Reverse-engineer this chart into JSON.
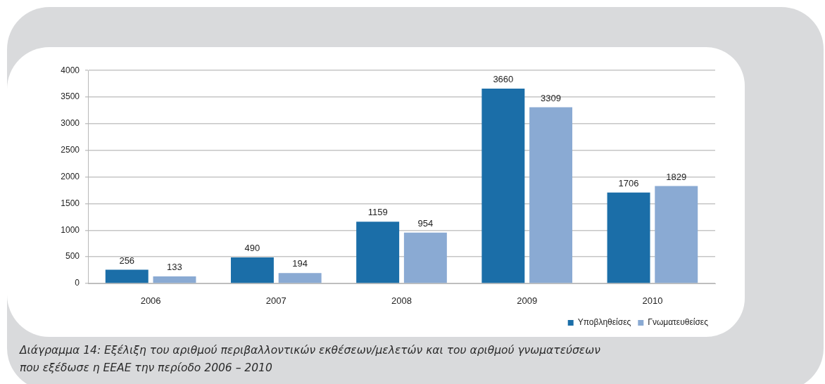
{
  "chart_data": {
    "type": "bar",
    "categories": [
      "2006",
      "2007",
      "2008",
      "2009",
      "2010"
    ],
    "series": [
      {
        "name": "Υποβληθείσες",
        "color": "#1b6ea8",
        "values": [
          256,
          490,
          1159,
          3660,
          1706
        ]
      },
      {
        "name": "Γνωματευθείσες",
        "color": "#8aaad3",
        "values": [
          133,
          194,
          954,
          3309,
          1829
        ]
      }
    ],
    "ylim": [
      0,
      4000
    ],
    "yticks": [
      0,
      500,
      1000,
      1500,
      2000,
      2500,
      3000,
      3500,
      4000
    ],
    "grid": "y",
    "legend": "bottom right",
    "data_labels": true,
    "annotations": [
      "Διάγραμμα 14: Εξέλιξη του αριθμού περιβαλλοντικών εκθέσεων/μελετών και του αριθμού γνωματεύσεων\nπου εξέδωσε η ΕΕΑΕ την περίοδο 2006 – 2010"
    ]
  }
}
